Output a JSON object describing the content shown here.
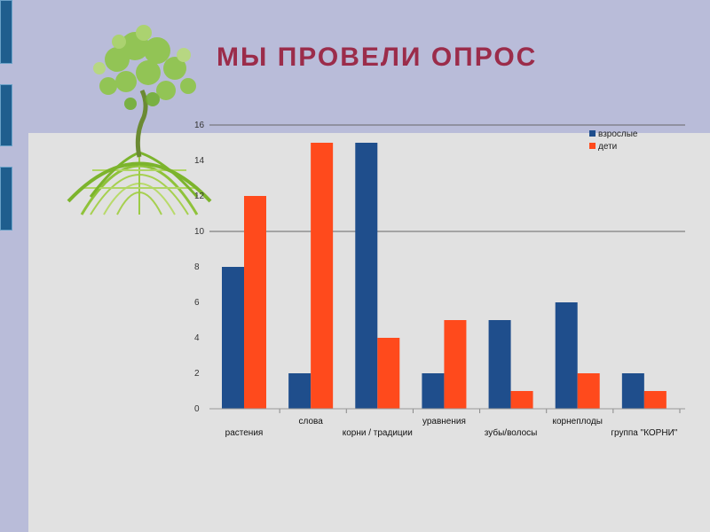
{
  "slide": {
    "title": "МЫ  ПРОВЕЛИ  ОПРОС",
    "background": "#b9bcd9",
    "accent": "#9b2c4a",
    "panel_color": "#e1e1e1"
  },
  "chart_data": {
    "type": "bar",
    "categories": [
      "растения",
      "слова",
      "корни / традиции",
      "уравнения",
      "зубы/волосы",
      "корнеплоды",
      "группа \"КОРНИ\""
    ],
    "series": [
      {
        "name": "взрослые",
        "color": "#1f4e8c",
        "values": [
          8,
          2,
          15,
          2,
          5,
          6,
          2
        ]
      },
      {
        "name": "дети",
        "color": "#ff4a1c",
        "values": [
          12,
          15,
          4,
          5,
          1,
          2,
          1
        ]
      }
    ],
    "y_ticks": [
      "0",
      "2",
      "4",
      "6",
      "8",
      "10",
      "12",
      "14",
      "16"
    ],
    "ylim": [
      0,
      16
    ],
    "gridlines_at": [
      10,
      16
    ],
    "legend_position": "top-right"
  }
}
